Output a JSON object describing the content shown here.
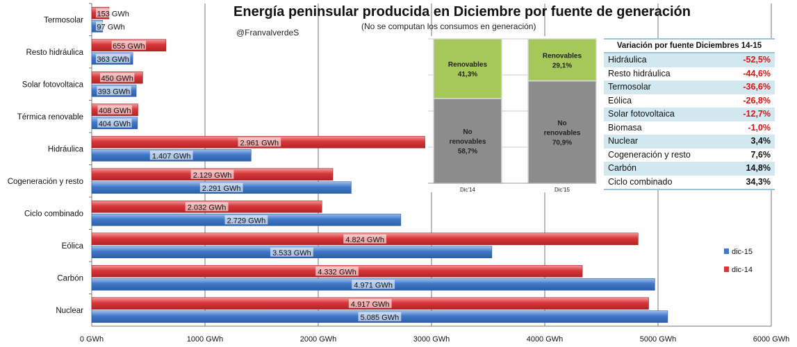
{
  "chart_data": {
    "type": "bar",
    "title": "Energía peninsular producida en Diciembre por fuente de generación",
    "subtitle": "(No se computan los consumos en generación)",
    "author": "@FranvalverdeS",
    "categories": [
      "Termosolar",
      "Resto hidráulica",
      "Solar fotovoltaica",
      "Térmica renovable",
      "Hidráulica",
      "Cogeneración y resto",
      "Ciclo combinado",
      "Eólica",
      "Carbón",
      "Nuclear"
    ],
    "series": [
      {
        "name": "dic-14",
        "color": "#d9363a",
        "values": [
          153,
          655,
          450,
          408,
          2961,
          2129,
          2032,
          4824,
          4332,
          4917
        ],
        "labels": [
          "153 GWh",
          "655 GWh",
          "450 GWh",
          "408 GWh",
          "2.961 GWh",
          "2.129 GWh",
          "2.032 GWh",
          "4.824 GWh",
          "4.332 GWh",
          "4.917 GWh"
        ]
      },
      {
        "name": "dic-15",
        "color": "#3f78c8",
        "values": [
          97,
          363,
          393,
          404,
          1407,
          2291,
          2729,
          3533,
          4971,
          5085
        ],
        "labels": [
          "97 GWh",
          "363 GWh",
          "393 GWh",
          "404 GWh",
          "1.407 GWh",
          "2.291 GWh",
          "2.729 GWh",
          "3.533 GWh",
          "4.971 GWh",
          "5.085 GWh"
        ]
      }
    ],
    "xlim": [
      0,
      6000
    ],
    "xticks": [
      0,
      1000,
      2000,
      3000,
      4000,
      5000,
      6000
    ],
    "xtick_labels": [
      "0 GWh",
      "1000 GWh",
      "2000 GWh",
      "3000 GWh",
      "4000 GWh",
      "5000 GWh",
      "6000 GWh"
    ],
    "legend_position": "right",
    "inset": {
      "type": "stacked-bar",
      "categories": [
        "Dic'14",
        "Dic'15"
      ],
      "series": [
        {
          "name": "No renovables",
          "color": "#8c8c8c",
          "values": [
            58.7,
            70.9
          ],
          "labels": [
            "No\nrenovables\n58,7%",
            "No\nrenovables\n70,9%"
          ]
        },
        {
          "name": "Renovables",
          "color": "#a6c85a",
          "values": [
            41.3,
            29.1
          ],
          "labels": [
            "Renovables\n41,3%",
            "Renovables\n29,1%"
          ]
        }
      ]
    }
  },
  "table": {
    "title": "Variación por fuente Diciembres 14-15",
    "rows": [
      {
        "label": "Hidráulica",
        "value": "-52,5%",
        "neg": true
      },
      {
        "label": "Resto hidráulica",
        "value": "-44,6%",
        "neg": true
      },
      {
        "label": "Termosolar",
        "value": "-36,6%",
        "neg": true
      },
      {
        "label": "Eólica",
        "value": "-26,8%",
        "neg": true
      },
      {
        "label": "Solar fotovoltaica",
        "value": "-12,7%",
        "neg": true
      },
      {
        "label": "Biomasa",
        "value": "-1,0%",
        "neg": true
      },
      {
        "label": "Nuclear",
        "value": "3,4%",
        "neg": false
      },
      {
        "label": "Cogeneración  y resto",
        "value": "7,6%",
        "neg": false
      },
      {
        "label": "Carbón",
        "value": "14,8%",
        "neg": false
      },
      {
        "label": "Ciclo combinado",
        "value": "34,3%",
        "neg": false
      }
    ]
  }
}
